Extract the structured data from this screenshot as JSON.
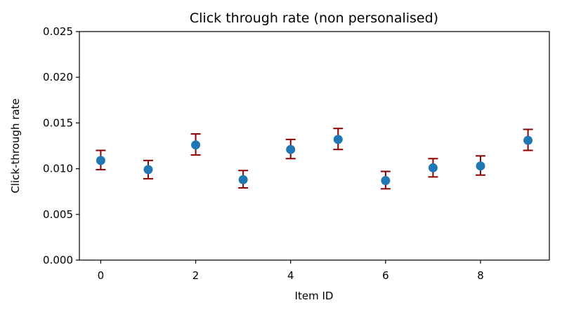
{
  "chart_data": {
    "type": "scatter",
    "title": "Click through rate (non personalised)",
    "xlabel": "Item ID",
    "ylabel": "Click-through rate",
    "xlim": [
      -0.45,
      9.45
    ],
    "ylim": [
      0.0,
      0.025
    ],
    "x_ticks": [
      "0",
      "2",
      "4",
      "6",
      "8"
    ],
    "y_ticks": [
      "0.000",
      "0.005",
      "0.010",
      "0.015",
      "0.020",
      "0.025"
    ],
    "grid": false,
    "legend": "none",
    "marker_color": "#1f77b4",
    "errorbar_color": "#8b0000",
    "x": [
      0,
      1,
      2,
      3,
      4,
      5,
      6,
      7,
      8,
      9
    ],
    "y": [
      0.0109,
      0.0099,
      0.0126,
      0.0088,
      0.0121,
      0.0132,
      0.0087,
      0.0101,
      0.0103,
      0.0131
    ],
    "y_err_low": [
      0.0099,
      0.0089,
      0.0115,
      0.0079,
      0.0111,
      0.0121,
      0.0078,
      0.0091,
      0.0093,
      0.012
    ],
    "y_err_high": [
      0.012,
      0.0109,
      0.0138,
      0.0098,
      0.0132,
      0.0144,
      0.0097,
      0.0111,
      0.0114,
      0.0143
    ]
  }
}
